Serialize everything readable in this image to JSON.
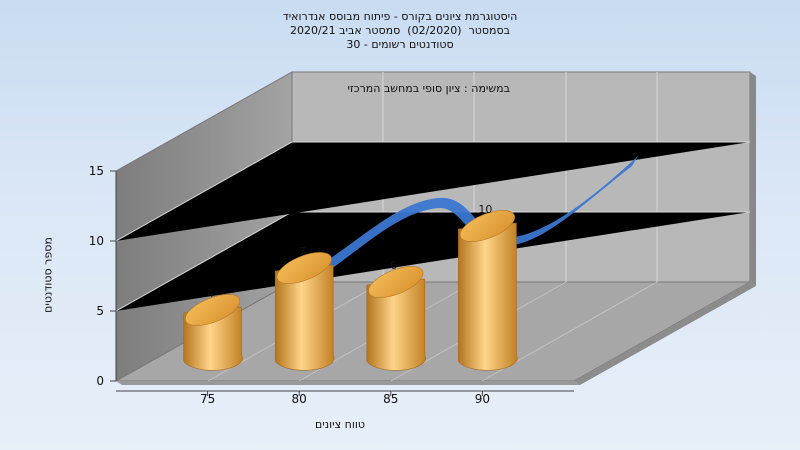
{
  "chart_data": {
    "type": "bar",
    "title_lines": [
      "היסטוגרמת ציונים בקורס - פיתוח מבוסס אנדרואיד",
      "בסמסטר  (02/2020)  סמסטר אביב 2020/21",
      "סטודנטים רשומים - 30"
    ],
    "subtitle": "במשימה : ציון סופי במחשב המרכזי",
    "xlabel": "טווח ציונים",
    "ylabel": "מספר סטודנטים",
    "categories": [
      "75",
      "80",
      "85",
      "90"
    ],
    "values": [
      4,
      7,
      6,
      10
    ],
    "y_ticks": [
      "0",
      "5",
      "10",
      "15"
    ],
    "ylim": [
      0,
      15
    ],
    "bar_color": "#e8a33c",
    "curve_color": "#3a76cf"
  }
}
